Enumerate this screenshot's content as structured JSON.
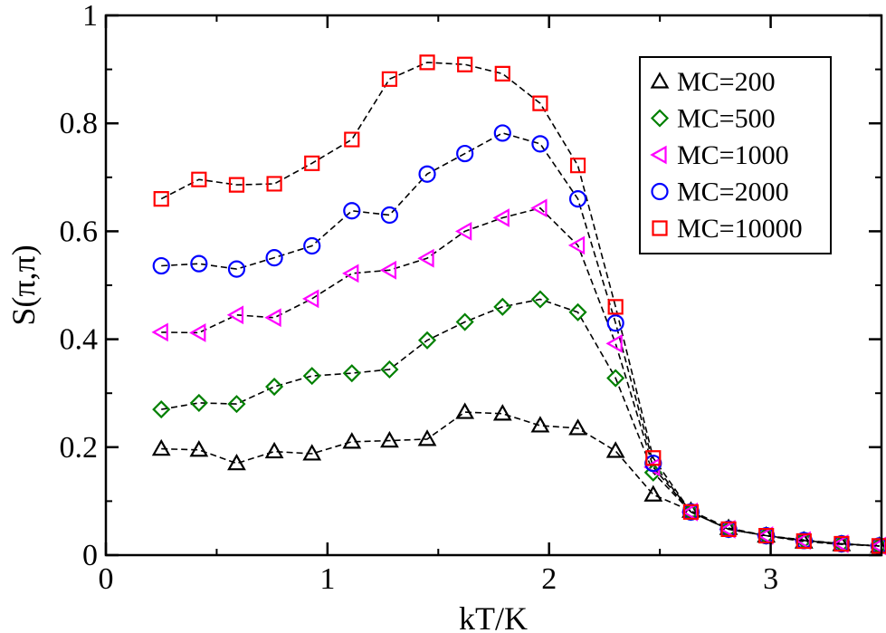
{
  "chart_data": {
    "type": "line",
    "title": "",
    "xlabel": "kT/K",
    "ylabel": "S(π,π)",
    "xlim": [
      0,
      3.5
    ],
    "ylim": [
      0,
      1
    ],
    "xticks": [
      0,
      1,
      2,
      3
    ],
    "xtick_labels": [
      "0",
      "1",
      "2",
      "3"
    ],
    "yticks": [
      0,
      0.2,
      0.4,
      0.6,
      0.8,
      1
    ],
    "ytick_labels": [
      "0",
      "0.2",
      "0.4",
      "0.6",
      "0.8",
      "1"
    ],
    "grid": false,
    "legend_position": "top-right",
    "line_style": "dashed",
    "line_color": "#000000",
    "x": [
      0.25,
      0.42,
      0.59,
      0.76,
      0.93,
      1.11,
      1.28,
      1.45,
      1.62,
      1.79,
      1.96,
      2.13,
      2.3,
      2.47,
      2.64,
      2.81,
      2.98,
      3.15,
      3.32,
      3.49
    ],
    "series": [
      {
        "name": "MC=200",
        "marker": "triangle-up",
        "color": "#000000",
        "values": [
          0.197,
          0.195,
          0.17,
          0.192,
          0.188,
          0.21,
          0.212,
          0.215,
          0.265,
          0.262,
          0.24,
          0.235,
          0.193,
          0.112,
          0.082,
          0.05,
          0.036,
          0.025,
          0.02,
          0.017
        ]
      },
      {
        "name": "MC=500",
        "marker": "diamond",
        "color": "#008000",
        "values": [
          0.27,
          0.282,
          0.28,
          0.312,
          0.332,
          0.337,
          0.344,
          0.398,
          0.432,
          0.46,
          0.474,
          0.45,
          0.328,
          0.153,
          0.08,
          0.048,
          0.036,
          0.028,
          0.021,
          0.017
        ]
      },
      {
        "name": "MC=1000",
        "marker": "triangle-left",
        "color": "#ff00ff",
        "values": [
          0.413,
          0.412,
          0.445,
          0.44,
          0.475,
          0.522,
          0.528,
          0.55,
          0.6,
          0.625,
          0.643,
          0.574,
          0.392,
          0.163,
          0.08,
          0.048,
          0.036,
          0.027,
          0.021,
          0.017
        ]
      },
      {
        "name": "MC=2000",
        "marker": "circle",
        "color": "#0000ff",
        "values": [
          0.536,
          0.54,
          0.53,
          0.551,
          0.573,
          0.638,
          0.63,
          0.706,
          0.744,
          0.782,
          0.762,
          0.66,
          0.43,
          0.17,
          0.08,
          0.048,
          0.036,
          0.027,
          0.021,
          0.017
        ]
      },
      {
        "name": "MC=10000",
        "marker": "square",
        "color": "#ff0000",
        "values": [
          0.66,
          0.696,
          0.686,
          0.688,
          0.726,
          0.77,
          0.882,
          0.913,
          0.909,
          0.892,
          0.837,
          0.722,
          0.46,
          0.18,
          0.08,
          0.048,
          0.036,
          0.026,
          0.021,
          0.017
        ]
      }
    ]
  }
}
